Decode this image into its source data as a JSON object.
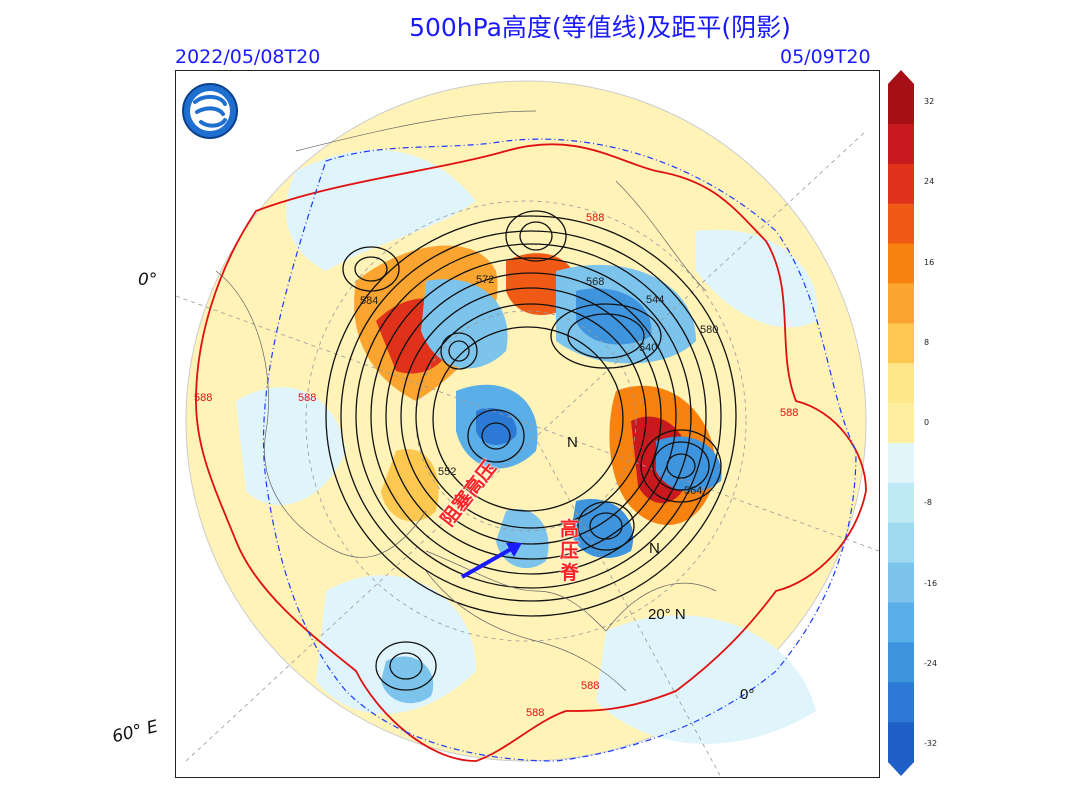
{
  "header": {
    "title": "500hPa高度(等值线)及距平(阴影)",
    "init_time": "2022/05/08T20",
    "valid_time": "05/09T20"
  },
  "map": {
    "projection": "north-polar-stereographic",
    "background_color": "#ffeea0",
    "labels": {
      "lon_0": "0°",
      "lon_60e": "60° E",
      "lat_20n": "20° N",
      "lon_0_bottom": "0°",
      "n_marker": "N",
      "n_marker_2": "N"
    },
    "contour_labels": [
      "584",
      "572",
      "568",
      "544",
      "540",
      "552",
      "564",
      "580",
      "588",
      "588",
      "588",
      "588",
      "588",
      "588"
    ],
    "annotations": {
      "block_high": "阻塞高压",
      "ridge": "高压脊"
    },
    "arrow_color": "#1a1aff"
  },
  "colorbar": {
    "ticks": [
      "32",
      "24",
      "16",
      "8",
      "0",
      "-8",
      "-16",
      "-24",
      "-32"
    ],
    "colors": [
      "#a50f15",
      "#c8191e",
      "#e0321a",
      "#f05a14",
      "#f7820f",
      "#fba530",
      "#fdc850",
      "#fee68a",
      "#ffeea0",
      "#e0f6fb",
      "#bfeaf5",
      "#9fdaf0",
      "#7cc4ec",
      "#5aaee8",
      "#3f94de",
      "#2c7ad6",
      "#1e5fc8"
    ]
  },
  "logo": {
    "icon": "meteorological-agency-logo-icon"
  }
}
